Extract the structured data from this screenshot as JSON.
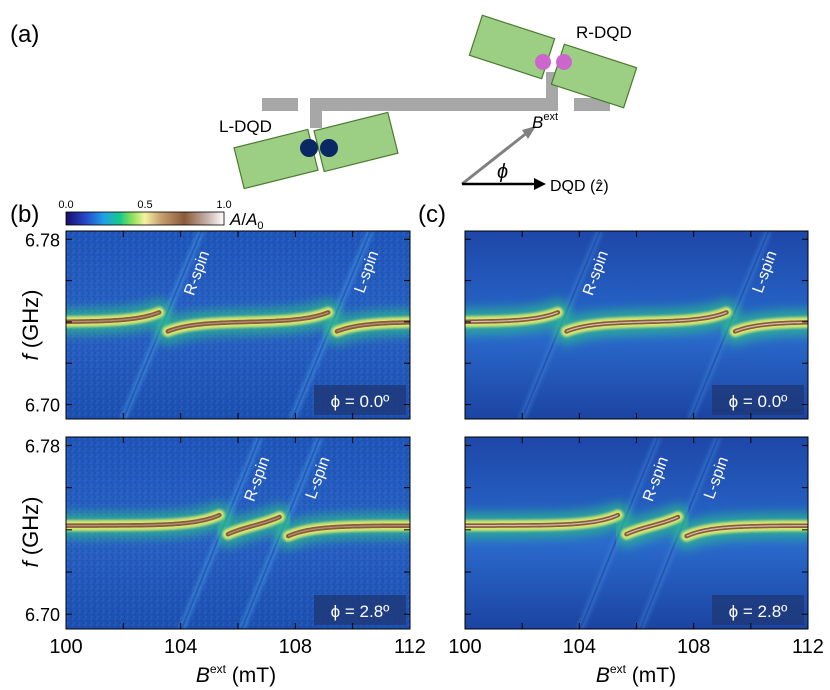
{
  "figure": {
    "panel_labels": {
      "a": "(a)",
      "b": "(b)",
      "c": "(c)"
    }
  },
  "schematic": {
    "left_dot_label": "L-DQD",
    "right_dot_label": "R-DQD",
    "field_label": "B",
    "field_sup": "ext",
    "angle_symbol": "ϕ",
    "axis_label": "DQD (ẑ)",
    "colors": {
      "gate": "#9ccf84",
      "gate_edge": "#4a7a30",
      "resonator": "#a7a7a7",
      "left_dots": "#0a2864",
      "right_dots": "#cc66cc",
      "arrow_field": "#808080"
    }
  },
  "colorbar": {
    "ticks": [
      "0.0",
      "0.5",
      "1.0"
    ],
    "label_main": "A",
    "label_den": "A",
    "label_den_sub": "0",
    "range": [
      0.0,
      1.0
    ]
  },
  "axes": {
    "ylabel_var": "f",
    "ylabel_unit": "(GHz)",
    "ytick_labels": [
      "6.78",
      "6.70"
    ],
    "yticks": [
      6.7,
      6.72,
      6.74,
      6.76,
      6.78
    ],
    "ylim": [
      6.693,
      6.784
    ],
    "xtick_labels": [
      "100",
      "104",
      "108",
      "112"
    ],
    "xticks": [
      100,
      102,
      104,
      106,
      108,
      110,
      112
    ],
    "xlim": [
      100,
      112
    ],
    "xlabel_var": "B",
    "xlabel_sup": "ext",
    "xlabel_unit": "(mT)"
  },
  "chart_data": [
    {
      "type": "heatmap",
      "panel": "(b)",
      "kind": "measured",
      "x_range": [
        100,
        112
      ],
      "y_range": [
        6.693,
        6.784
      ],
      "z_range": [
        0,
        1
      ],
      "resonance_f": 6.74,
      "phi_label": "ϕ = 0.0º",
      "spin_lines": [
        {
          "label": "R-spin",
          "B": 103.4
        },
        {
          "label": "L-spin",
          "B": 109.3
        }
      ],
      "coupling_width": 0.6
    },
    {
      "type": "heatmap",
      "panel": "(c)",
      "kind": "simulated",
      "x_range": [
        100,
        112
      ],
      "y_range": [
        6.693,
        6.784
      ],
      "z_range": [
        0,
        1
      ],
      "resonance_f": 6.74,
      "phi_label": "ϕ = 0.0º",
      "spin_lines": [
        {
          "label": "R-spin",
          "B": 103.4
        },
        {
          "label": "L-spin",
          "B": 109.3
        }
      ],
      "coupling_width": 0.6
    },
    {
      "type": "heatmap",
      "panel": "(b)",
      "kind": "measured",
      "x_range": [
        100,
        112
      ],
      "y_range": [
        6.693,
        6.784
      ],
      "z_range": [
        0,
        1
      ],
      "resonance_f": 6.742,
      "phi_label": "ϕ = 2.8º",
      "spin_lines": [
        {
          "label": "R-spin",
          "B": 105.5
        },
        {
          "label": "L-spin",
          "B": 107.6
        }
      ],
      "coupling_width": 0.6
    },
    {
      "type": "heatmap",
      "panel": "(c)",
      "kind": "simulated",
      "x_range": [
        100,
        112
      ],
      "y_range": [
        6.693,
        6.784
      ],
      "z_range": [
        0,
        1
      ],
      "resonance_f": 6.742,
      "phi_label": "ϕ = 2.8º",
      "spin_lines": [
        {
          "label": "R-spin",
          "B": 105.5
        },
        {
          "label": "L-spin",
          "B": 107.6
        }
      ],
      "coupling_width": 0.6
    }
  ]
}
